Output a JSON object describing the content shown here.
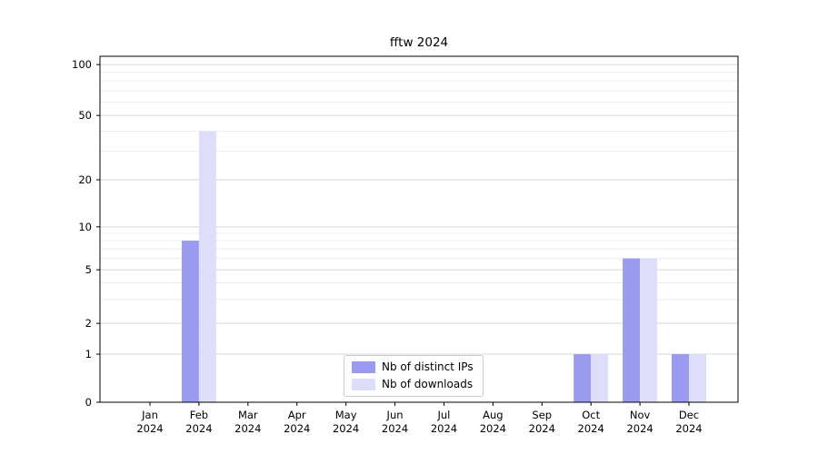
{
  "chart_data": {
    "type": "bar",
    "title": "fftw 2024",
    "categories": [
      "Jan",
      "Feb",
      "Mar",
      "Apr",
      "May",
      "Jun",
      "Jul",
      "Aug",
      "Sep",
      "Oct",
      "Nov",
      "Dec"
    ],
    "year_label": "2024",
    "series": [
      {
        "name": "Nb of distinct IPs",
        "color": "#9a9aee",
        "values": [
          0,
          8,
          0,
          0,
          0,
          0,
          0,
          0,
          0,
          1,
          6,
          1
        ]
      },
      {
        "name": "Nb of downloads",
        "color": "#dedefa",
        "values": [
          0,
          40,
          0,
          0,
          0,
          0,
          0,
          0,
          0,
          1,
          6,
          1
        ]
      }
    ],
    "yticks": [
      0,
      1,
      2,
      5,
      10,
      20,
      50,
      100
    ],
    "minor_gridline_values": [
      3,
      4,
      6,
      7,
      8,
      9,
      30,
      40,
      60,
      70,
      80,
      90
    ],
    "ylim": [
      0,
      110
    ],
    "scale": "log-with-zero",
    "grid": true,
    "legend_position": "bottom-center",
    "colors": {
      "major_grid": "#d9d9d9",
      "minor_grid": "#ececec",
      "axis": "#000000",
      "text": "#000000"
    }
  }
}
